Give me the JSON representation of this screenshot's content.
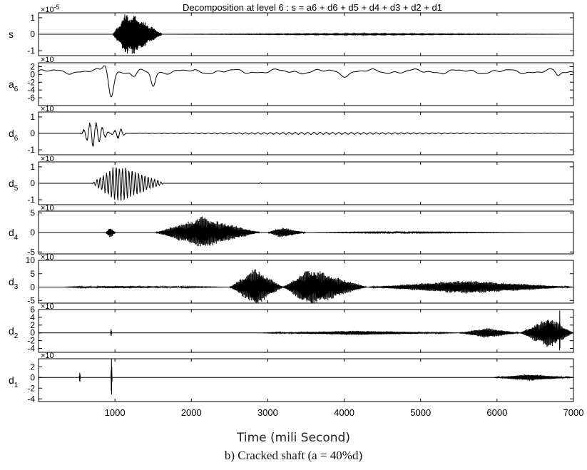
{
  "chart_data": {
    "type": "line",
    "title": "Decomposition at level 6 : s = a6 + d6 + d5 + d4 + d3 + d2 + d1",
    "xlabel": "Time (mili Second)",
    "caption": "b) Cracked shaft (a = 40%d)",
    "xlim": [
      0,
      7000
    ],
    "xticks": [
      1000,
      2000,
      3000,
      4000,
      5000,
      6000,
      7000
    ],
    "grid": false,
    "panels": [
      {
        "name": "s",
        "sub": "",
        "exp": "×10-5",
        "ylim": [
          -1.3,
          1.3
        ],
        "yticks": [
          1,
          0,
          -1
        ],
        "packets": [
          [
            970,
            1620,
            1.3,
            170
          ],
          [
            1620,
            7000,
            0.05,
            3000
          ]
        ],
        "spikes": []
      },
      {
        "name": "a",
        "sub": "6",
        "exp": "×10",
        "ylim": [
          -8,
          3
        ],
        "yticks": [
          2,
          0,
          -2,
          -4,
          -6
        ],
        "packets": [],
        "spikes": []
      },
      {
        "name": "d",
        "sub": "6",
        "exp": "×10",
        "ylim": [
          -1.3,
          1.3
        ],
        "yticks": [
          1,
          0,
          -1
        ],
        "packets": [
          [
            550,
            940,
            0.9,
            160
          ],
          [
            940,
            1150,
            0.5,
            150
          ],
          [
            1150,
            7000,
            0.07,
            2500
          ]
        ],
        "spikes": []
      },
      {
        "name": "d",
        "sub": "5",
        "exp": "×10",
        "ylim": [
          -1.3,
          1.3
        ],
        "yticks": [
          1,
          0,
          -1
        ],
        "packets": [
          [
            700,
            1650,
            1.1,
            300
          ],
          [
            2870,
            2930,
            0.05,
            30
          ]
        ],
        "spikes": []
      },
      {
        "name": "d",
        "sub": "4",
        "exp": "×10",
        "ylim": [
          -5.5,
          5.5
        ],
        "yticks": [
          5,
          0,
          -5
        ],
        "packets": [
          [
            880,
            1010,
            1.6,
            60
          ],
          [
            1530,
            2900,
            4.5,
            650
          ],
          [
            3000,
            3500,
            1.3,
            150
          ],
          [
            3500,
            6500,
            0.12,
            1000
          ]
        ],
        "spikes": []
      },
      {
        "name": "d",
        "sub": "3",
        "exp": "×10",
        "ylim": [
          -6,
          10
        ],
        "yticks": [
          10,
          5,
          0,
          -5
        ],
        "packets": [
          [
            2500,
            3200,
            8.5,
            400
          ],
          [
            3200,
            4300,
            6.5,
            300
          ],
          [
            4300,
            7000,
            3.0,
            1500
          ],
          [
            300,
            2500,
            0.4,
            600
          ]
        ],
        "spikes": []
      },
      {
        "name": "d",
        "sub": "2",
        "exp": "×10",
        "ylim": [
          -5,
          6
        ],
        "yticks": [
          6,
          4,
          2,
          0,
          -2,
          -4
        ],
        "packets": [
          [
            2900,
            5500,
            0.7,
            1500
          ],
          [
            5500,
            6300,
            1.5,
            400
          ],
          [
            6300,
            7000,
            5.5,
            500
          ]
        ],
        "spikes": [
          [
            950,
            1.0
          ],
          [
            6820,
            6
          ]
        ]
      },
      {
        "name": "d",
        "sub": "1",
        "exp": "×10",
        "ylim": [
          -4.5,
          3.5
        ],
        "yticks": [
          2,
          0,
          -2,
          -4
        ],
        "packets": [
          [
            5950,
            7000,
            0.7,
            500
          ]
        ],
        "spikes": [
          [
            540,
            1.0
          ],
          [
            955,
            4.0
          ]
        ]
      }
    ]
  }
}
